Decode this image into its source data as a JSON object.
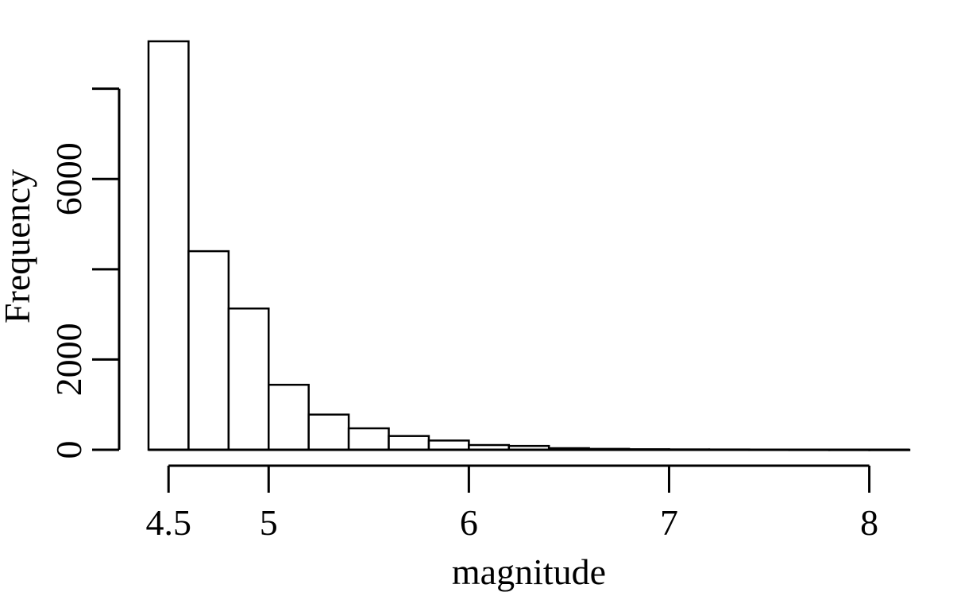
{
  "chart_data": {
    "type": "bar",
    "title": "",
    "xlabel": "magnitude",
    "ylabel": "Frequency",
    "bin_width": 0.2,
    "bin_starts": [
      4.4,
      4.6,
      4.8,
      5.0,
      5.2,
      5.4,
      5.6,
      5.8,
      6.0,
      6.2,
      6.4,
      6.6,
      6.8,
      7.0,
      7.2,
      7.4,
      7.6,
      7.8,
      8.0
    ],
    "values": [
      9050,
      4400,
      3130,
      1440,
      780,
      475,
      305,
      205,
      105,
      85,
      35,
      20,
      12,
      8,
      6,
      4,
      3,
      2,
      1
    ],
    "xlim": [
      4.4,
      8.2
    ],
    "ylim": [
      0,
      9050
    ],
    "x_ticks": [
      4.5,
      5,
      6,
      7,
      8
    ],
    "x_tick_labels": [
      "4.5",
      "5",
      "6",
      "7",
      "8"
    ],
    "y_ticks": [
      0,
      2000,
      4000,
      6000,
      8000
    ],
    "y_tick_labels": [
      "0",
      "2000",
      "",
      "6000",
      ""
    ],
    "grid": false,
    "legend": "none"
  }
}
